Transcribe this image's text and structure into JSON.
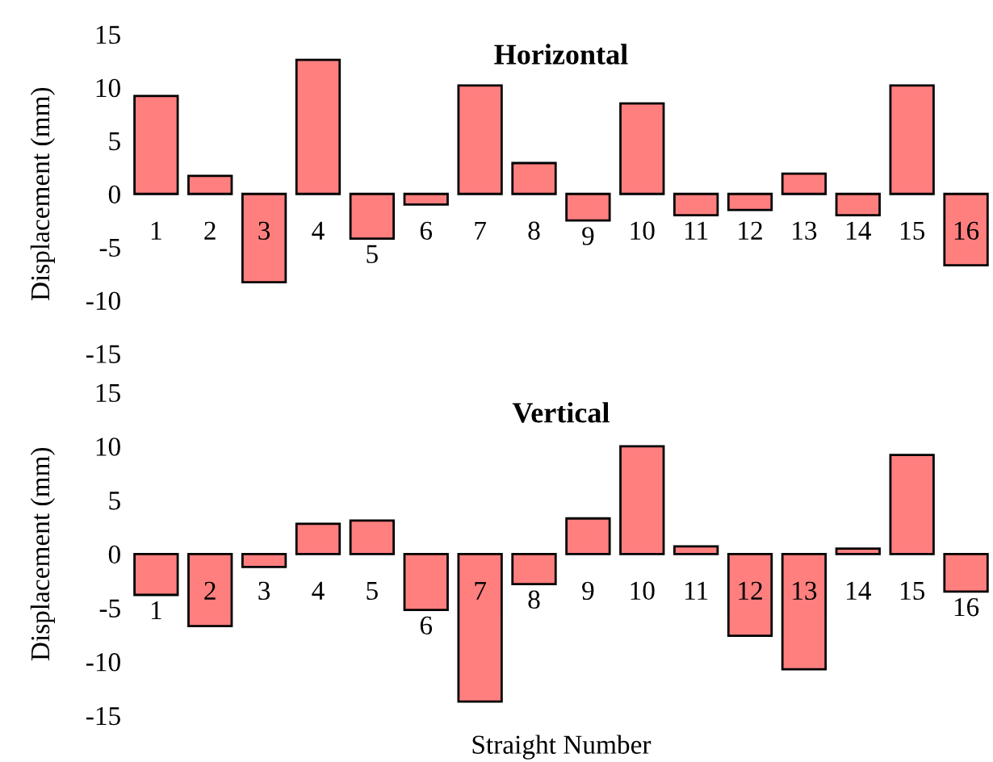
{
  "chart_data": [
    {
      "type": "bar",
      "title": "Horizontal",
      "ylabel": "Displacement (mm)",
      "categories": [
        "1",
        "2",
        "3",
        "4",
        "5",
        "6",
        "7",
        "8",
        "9",
        "10",
        "11",
        "12",
        "13",
        "14",
        "15",
        "16"
      ],
      "values": [
        9.2,
        1.7,
        -8.3,
        12.6,
        -4.2,
        -1.0,
        10.2,
        2.9,
        -2.5,
        8.5,
        -2.0,
        -1.5,
        1.9,
        -2.0,
        10.2,
        -6.7
      ],
      "color": "#ff7f7f",
      "ylim": [
        -15,
        15
      ],
      "yticks": [
        -15,
        -10,
        -5,
        0,
        5,
        10,
        15
      ],
      "grid": false,
      "legend": false
    },
    {
      "type": "bar",
      "title": "Vertical",
      "ylabel": "Displacement (mm)",
      "xlabel": "Straight Number",
      "categories": [
        "1",
        "2",
        "3",
        "4",
        "5",
        "6",
        "7",
        "8",
        "9",
        "10",
        "11",
        "12",
        "13",
        "14",
        "15",
        "16"
      ],
      "values": [
        -3.8,
        -6.7,
        -1.2,
        2.8,
        3.1,
        -5.2,
        -13.7,
        -2.8,
        3.3,
        10.0,
        0.7,
        -7.6,
        -10.7,
        0.5,
        9.2,
        -3.5
      ],
      "color": "#ff7f7f",
      "ylim": [
        -15,
        15
      ],
      "yticks": [
        -15,
        -10,
        -5,
        0,
        5,
        10,
        15
      ],
      "grid": false,
      "legend": false
    }
  ]
}
